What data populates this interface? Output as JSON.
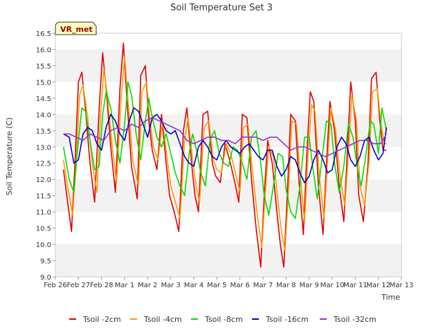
{
  "chart_data": {
    "type": "line",
    "title": "Soil Temperature Set 3",
    "xlabel": "Time",
    "ylabel": "Soil Temperature (C)",
    "site_label": "VR_met",
    "xlim": [
      0,
      15
    ],
    "ylim": [
      9.0,
      16.5
    ],
    "x_ticks": [
      {
        "x": 0,
        "label": "Feb 26"
      },
      {
        "x": 1,
        "label": "Feb 27"
      },
      {
        "x": 2,
        "label": "Feb 28"
      },
      {
        "x": 3,
        "label": "Mar 1"
      },
      {
        "x": 4,
        "label": "Mar 2"
      },
      {
        "x": 5,
        "label": "Mar 3"
      },
      {
        "x": 6,
        "label": "Mar 4"
      },
      {
        "x": 7,
        "label": "Mar 5"
      },
      {
        "x": 8,
        "label": "Mar 6"
      },
      {
        "x": 9,
        "label": "Mar 7"
      },
      {
        "x": 10,
        "label": "Mar 8"
      },
      {
        "x": 11,
        "label": "Mar 9"
      },
      {
        "x": 12,
        "label": "Mar 10"
      },
      {
        "x": 13,
        "label": "Mar 11"
      },
      {
        "x": 14,
        "label": "Mar 12"
      },
      {
        "x": 15,
        "label": "Mar 13"
      }
    ],
    "y_ticks": [
      "9.0",
      "9.5",
      "10.0",
      "10.5",
      "11.0",
      "11.5",
      "12.0",
      "12.5",
      "13.0",
      "13.5",
      "14.0",
      "14.5",
      "15.0",
      "15.5",
      "16.0",
      "16.5"
    ],
    "grid": "horizontal bands",
    "legend_position": "bottom",
    "series": [
      {
        "name": "Tsoil -2cm",
        "color": "#e00000",
        "x": [
          0.35,
          0.55,
          0.7,
          0.85,
          1.0,
          1.15,
          1.3,
          1.5,
          1.7,
          1.9,
          2.05,
          2.2,
          2.4,
          2.6,
          2.8,
          2.95,
          3.1,
          3.3,
          3.55,
          3.7,
          3.9,
          4.05,
          4.2,
          4.4,
          4.6,
          4.8,
          4.95,
          5.15,
          5.35,
          5.55,
          5.7,
          5.9,
          6.05,
          6.2,
          6.4,
          6.6,
          6.8,
          6.95,
          7.15,
          7.35,
          7.55,
          7.75,
          7.95,
          8.1,
          8.3,
          8.5,
          8.7,
          8.9,
          9.05,
          9.2,
          9.4,
          9.6,
          9.75,
          9.9,
          10.05,
          10.2,
          10.4,
          10.55,
          10.75,
          10.9,
          11.05,
          11.2,
          11.4,
          11.6,
          11.75,
          11.9,
          12.1,
          12.3,
          12.5,
          12.65,
          12.8,
          13.0,
          13.15,
          13.35,
          13.55,
          13.7,
          13.9,
          14.05,
          14.2,
          14.35
        ],
        "y": [
          12.3,
          11.2,
          10.4,
          12.5,
          15.0,
          15.3,
          14.2,
          12.5,
          11.3,
          14.2,
          15.9,
          14.8,
          13.0,
          11.6,
          14.8,
          16.2,
          14.5,
          12.4,
          11.4,
          15.2,
          15.5,
          13.8,
          12.9,
          12.3,
          14.0,
          12.5,
          11.5,
          11.0,
          10.4,
          13.5,
          14.2,
          12.5,
          11.5,
          11.0,
          14.0,
          14.1,
          12.5,
          12.1,
          11.9,
          13.1,
          12.6,
          12.0,
          11.3,
          14.0,
          13.9,
          12.0,
          10.5,
          9.3,
          11.5,
          13.2,
          12.5,
          11.0,
          10.0,
          9.3,
          11.5,
          14.0,
          13.8,
          12.0,
          10.3,
          12.8,
          14.7,
          14.4,
          11.8,
          10.3,
          12.5,
          14.4,
          13.5,
          11.8,
          10.7,
          12.8,
          15.0,
          13.8,
          11.5,
          10.7,
          12.5,
          15.1,
          15.3,
          13.9,
          12.9,
          12.9
        ]
      },
      {
        "name": "Tsoil -4cm",
        "color": "#ff9900",
        "x": [
          0.35,
          0.55,
          0.75,
          0.9,
          1.05,
          1.2,
          1.4,
          1.6,
          1.8,
          1.95,
          2.1,
          2.25,
          2.45,
          2.65,
          2.85,
          3.0,
          3.15,
          3.35,
          3.6,
          3.75,
          3.95,
          4.1,
          4.25,
          4.45,
          4.65,
          4.85,
          5.0,
          5.2,
          5.4,
          5.6,
          5.75,
          5.95,
          6.1,
          6.25,
          6.45,
          6.65,
          6.85,
          7.0,
          7.2,
          7.4,
          7.6,
          7.8,
          8.0,
          8.15,
          8.35,
          8.55,
          8.75,
          8.95,
          9.1,
          9.25,
          9.45,
          9.65,
          9.8,
          9.95,
          10.1,
          10.25,
          10.45,
          10.6,
          10.8,
          10.95,
          11.1,
          11.25,
          11.45,
          11.65,
          11.8,
          11.95,
          12.15,
          12.35,
          12.55,
          12.7,
          12.85,
          13.05,
          13.2,
          13.4,
          13.6,
          13.75,
          13.95,
          14.1,
          14.25,
          14.35
        ],
        "y": [
          12.6,
          11.7,
          10.9,
          12.6,
          14.6,
          14.9,
          13.9,
          12.5,
          11.6,
          13.9,
          15.4,
          14.6,
          13.1,
          11.9,
          14.5,
          15.8,
          14.4,
          12.6,
          11.8,
          14.7,
          15.0,
          13.8,
          13.0,
          12.6,
          13.8,
          12.6,
          11.8,
          11.3,
          10.8,
          13.2,
          13.9,
          12.6,
          11.8,
          11.3,
          13.6,
          13.8,
          12.6,
          12.3,
          12.2,
          13.1,
          12.8,
          12.2,
          11.6,
          13.6,
          13.7,
          12.2,
          10.9,
          9.9,
          11.6,
          13.0,
          12.7,
          11.3,
          10.4,
          9.8,
          11.6,
          13.8,
          13.7,
          12.2,
          10.7,
          12.7,
          14.3,
          14.1,
          12.0,
          10.8,
          12.6,
          14.2,
          13.5,
          12.0,
          11.2,
          12.8,
          14.6,
          13.8,
          11.8,
          11.2,
          12.6,
          14.7,
          14.8,
          13.8,
          13.1,
          13.1
        ]
      },
      {
        "name": "Tsoil -8cm",
        "color": "#00dd00",
        "x": [
          0.35,
          0.6,
          0.8,
          1.0,
          1.15,
          1.3,
          1.5,
          1.7,
          1.9,
          2.05,
          2.2,
          2.4,
          2.6,
          2.8,
          3.0,
          3.15,
          3.3,
          3.5,
          3.7,
          3.9,
          4.05,
          4.2,
          4.4,
          4.6,
          4.8,
          5.0,
          5.2,
          5.4,
          5.6,
          5.8,
          5.95,
          6.15,
          6.3,
          6.5,
          6.7,
          6.9,
          7.1,
          7.3,
          7.5,
          7.7,
          7.9,
          8.1,
          8.3,
          8.5,
          8.7,
          8.9,
          9.05,
          9.25,
          9.45,
          9.65,
          9.85,
          10.0,
          10.2,
          10.4,
          10.6,
          10.8,
          11.0,
          11.15,
          11.35,
          11.55,
          11.75,
          11.95,
          12.1,
          12.3,
          12.5,
          12.7,
          12.9,
          13.1,
          13.25,
          13.45,
          13.65,
          13.8,
          14.0,
          14.15,
          14.35
        ],
        "y": [
          13.0,
          12.0,
          11.6,
          13.2,
          14.2,
          14.1,
          13.2,
          12.3,
          12.4,
          14.0,
          14.7,
          14.2,
          13.2,
          12.5,
          13.7,
          15.0,
          14.6,
          13.4,
          12.6,
          13.8,
          14.5,
          13.9,
          13.3,
          13.0,
          13.4,
          12.8,
          12.2,
          11.8,
          11.5,
          12.8,
          13.4,
          12.8,
          12.2,
          11.8,
          13.2,
          13.5,
          12.8,
          12.5,
          12.4,
          13.0,
          12.9,
          12.5,
          12.0,
          13.3,
          13.5,
          12.5,
          11.5,
          10.9,
          11.8,
          12.8,
          12.7,
          11.7,
          11.0,
          10.8,
          11.8,
          13.3,
          13.3,
          12.4,
          11.4,
          12.6,
          13.8,
          13.7,
          12.5,
          11.6,
          12.4,
          13.7,
          13.3,
          12.3,
          11.8,
          12.7,
          13.8,
          13.7,
          12.8,
          14.2,
          13.5
        ]
      },
      {
        "name": "Tsoil -16cm",
        "color": "#0000cc",
        "x": [
          0.35,
          0.6,
          0.8,
          1.0,
          1.2,
          1.4,
          1.6,
          1.8,
          2.0,
          2.2,
          2.4,
          2.6,
          2.8,
          3.0,
          3.2,
          3.4,
          3.6,
          3.8,
          4.0,
          4.2,
          4.4,
          4.6,
          4.8,
          5.0,
          5.2,
          5.4,
          5.6,
          5.8,
          6.0,
          6.2,
          6.4,
          6.6,
          6.8,
          7.0,
          7.2,
          7.4,
          7.6,
          7.8,
          8.0,
          8.2,
          8.4,
          8.6,
          8.8,
          9.0,
          9.2,
          9.4,
          9.6,
          9.8,
          10.0,
          10.2,
          10.4,
          10.6,
          10.8,
          11.0,
          11.2,
          11.4,
          11.6,
          11.8,
          12.0,
          12.2,
          12.4,
          12.6,
          12.8,
          13.0,
          13.2,
          13.4,
          13.6,
          13.8,
          14.0,
          14.2,
          14.35
        ],
        "y": [
          13.4,
          13.3,
          12.5,
          12.6,
          13.4,
          13.6,
          13.5,
          13.1,
          12.9,
          13.6,
          14.0,
          13.8,
          13.4,
          13.2,
          13.8,
          14.2,
          14.1,
          13.7,
          13.3,
          13.9,
          14.0,
          13.8,
          13.5,
          13.4,
          13.5,
          13.1,
          12.7,
          12.5,
          12.4,
          13.0,
          13.2,
          13.0,
          12.7,
          12.6,
          13.0,
          13.2,
          13.0,
          12.9,
          12.8,
          13.0,
          13.1,
          12.9,
          12.7,
          12.6,
          12.9,
          12.9,
          12.4,
          12.1,
          12.3,
          12.7,
          12.6,
          12.2,
          11.9,
          12.1,
          12.6,
          12.9,
          12.6,
          12.2,
          12.3,
          13.0,
          13.3,
          13.1,
          12.6,
          12.4,
          12.7,
          13.2,
          13.3,
          12.9,
          12.6,
          12.8,
          13.6
        ]
      },
      {
        "name": "Tsoil -32cm",
        "color": "#9933cc",
        "x": [
          0.35,
          0.6,
          0.9,
          1.2,
          1.5,
          1.8,
          2.1,
          2.4,
          2.7,
          3.0,
          3.3,
          3.6,
          3.9,
          4.2,
          4.5,
          4.8,
          5.1,
          5.4,
          5.7,
          6.0,
          6.3,
          6.6,
          6.9,
          7.2,
          7.5,
          7.8,
          8.1,
          8.4,
          8.7,
          9.0,
          9.3,
          9.6,
          9.9,
          10.2,
          10.5,
          10.8,
          11.1,
          11.4,
          11.7,
          12.0,
          12.3,
          12.6,
          12.9,
          13.2,
          13.5,
          13.8,
          14.1,
          14.35
        ],
        "y": [
          13.4,
          13.4,
          13.3,
          13.2,
          13.4,
          13.3,
          13.2,
          13.5,
          13.6,
          13.5,
          13.7,
          13.6,
          13.8,
          13.9,
          13.8,
          13.7,
          13.6,
          13.5,
          13.2,
          13.1,
          13.2,
          13.3,
          13.3,
          13.2,
          13.2,
          13.1,
          13.3,
          13.3,
          13.3,
          13.2,
          13.3,
          13.3,
          13.1,
          12.9,
          13.0,
          13.0,
          12.9,
          12.8,
          12.7,
          12.8,
          12.9,
          13.0,
          13.1,
          13.2,
          13.2,
          13.1,
          13.1,
          13.4
        ]
      }
    ]
  }
}
